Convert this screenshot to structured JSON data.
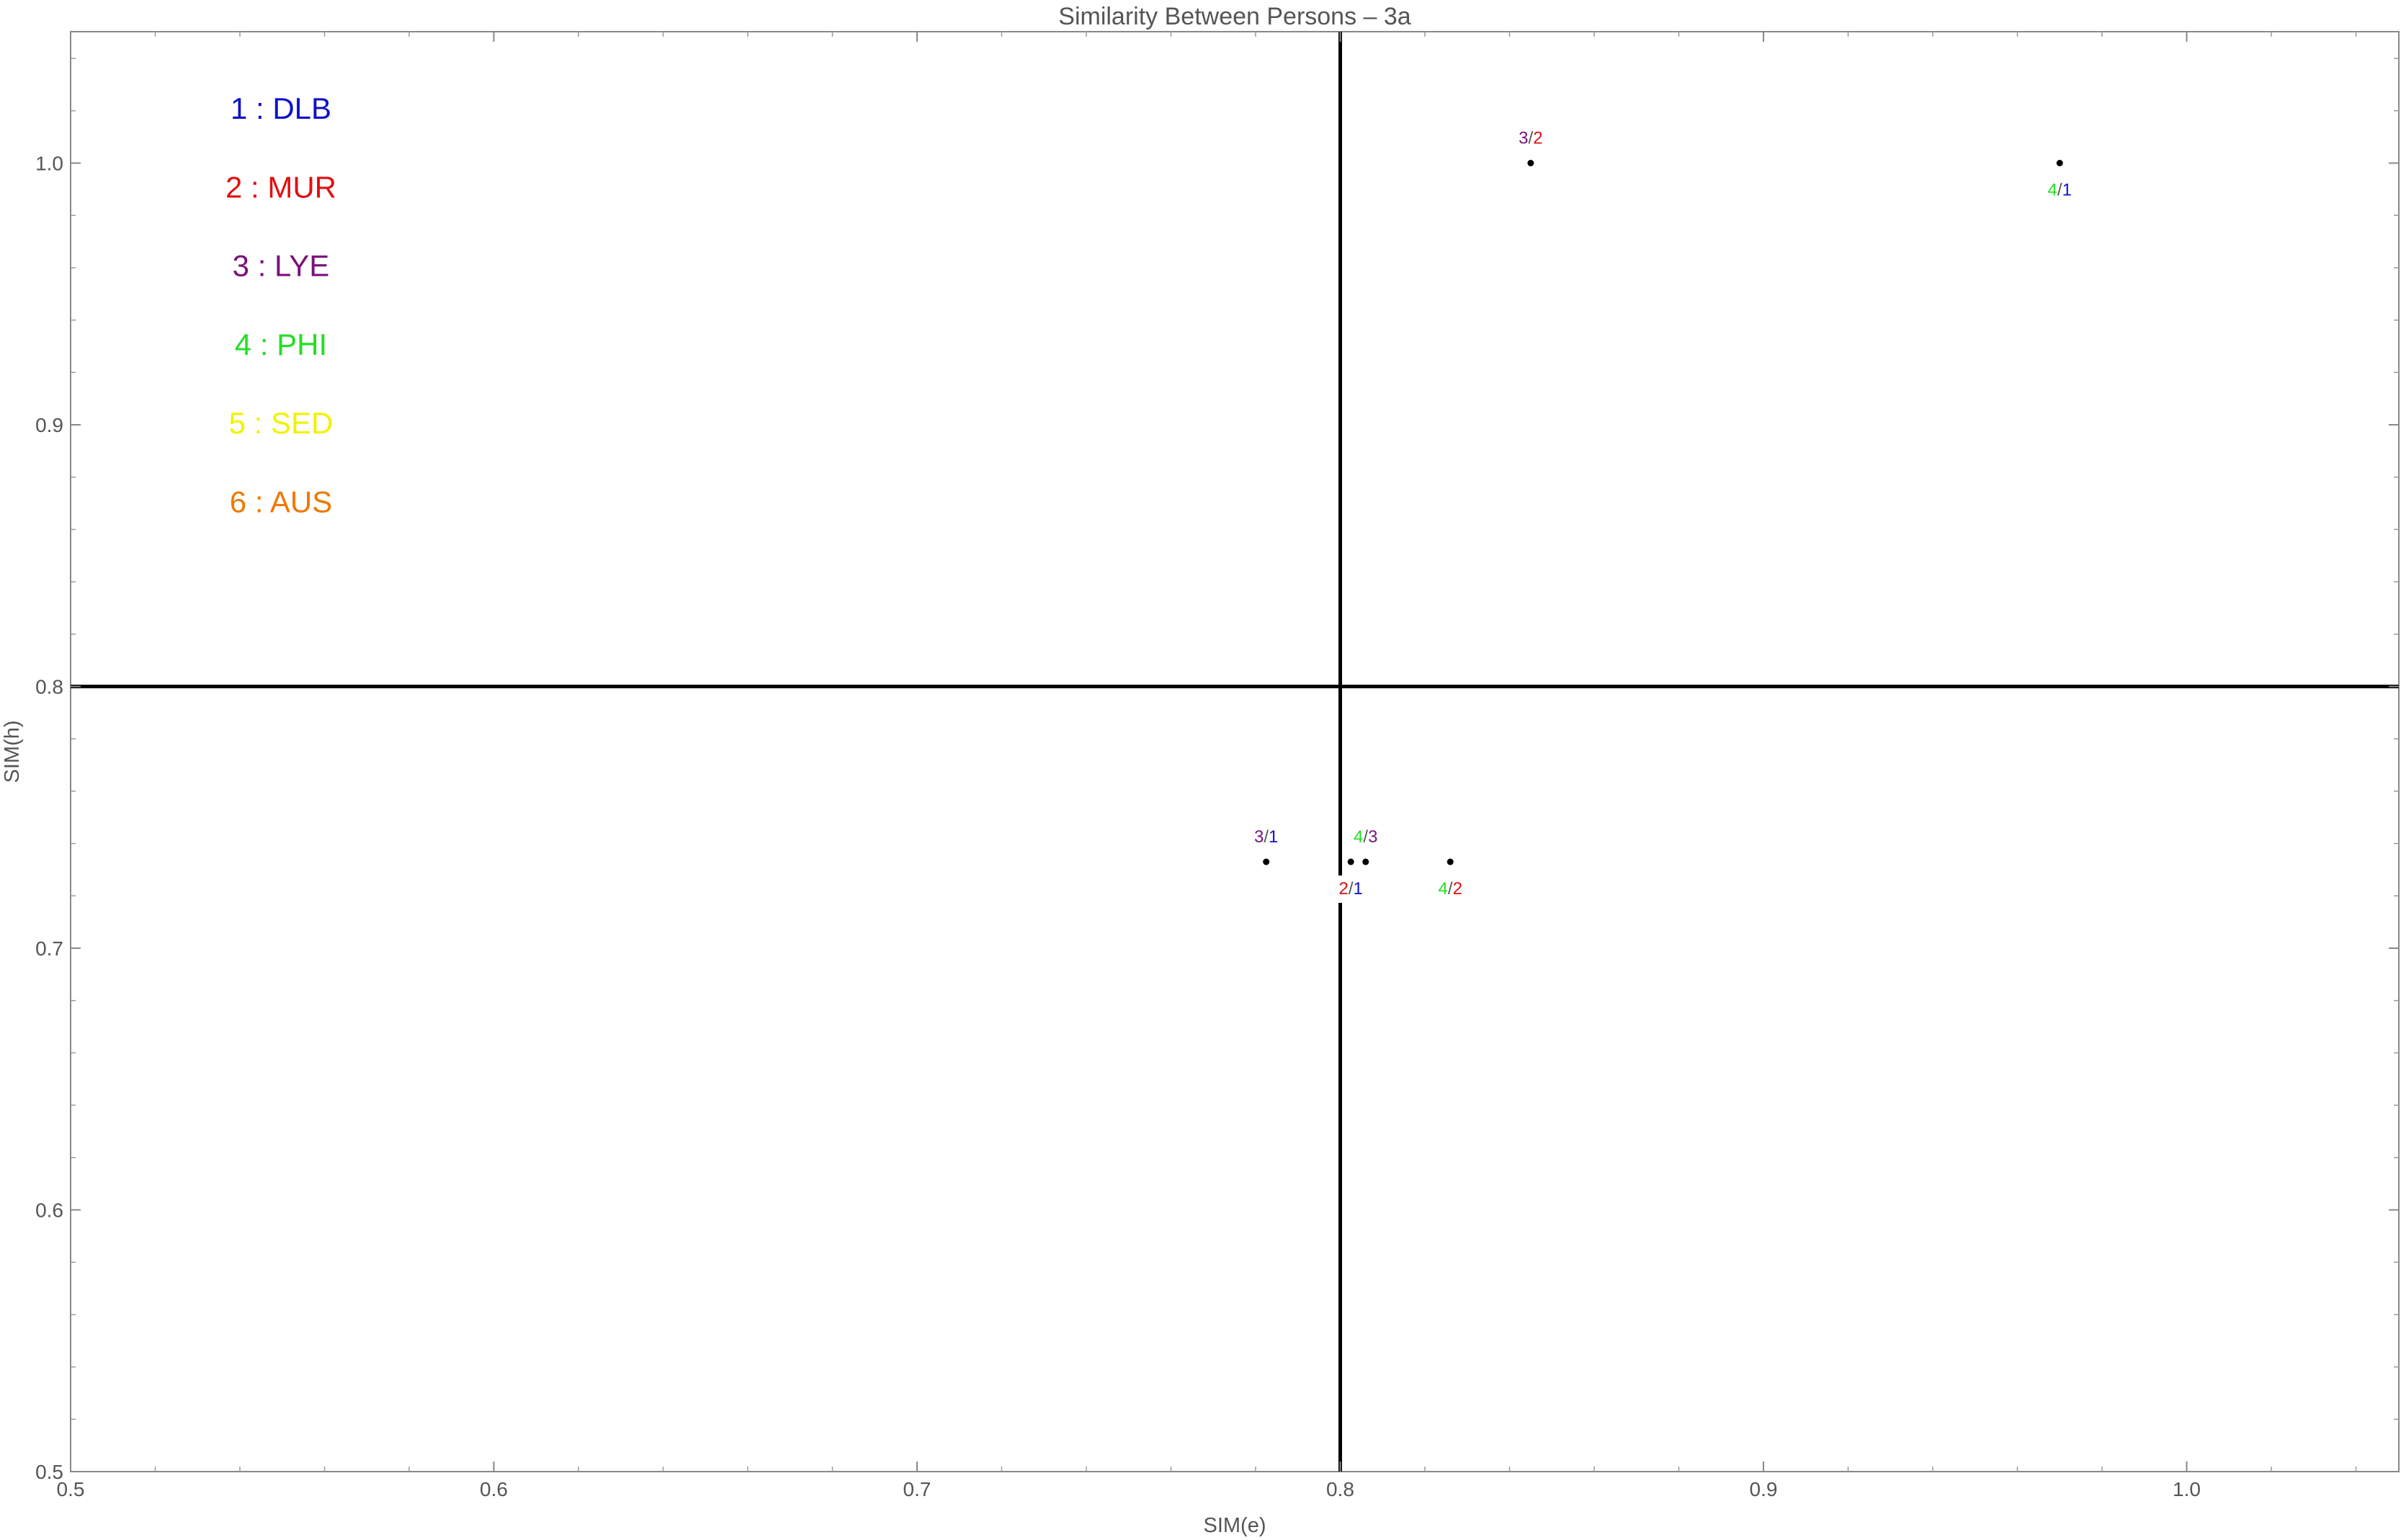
{
  "chart_data": {
    "type": "scatter",
    "title": "Similarity Between Persons – 3a",
    "xlabel": "SIM(e)",
    "ylabel": "SIM(h)",
    "xlim": [
      0.5,
      1.05
    ],
    "ylim": [
      0.5,
      1.05
    ],
    "xticks": [
      0.5,
      0.6,
      0.7,
      0.8,
      0.9,
      1.0
    ],
    "yticks": [
      0.5,
      0.6,
      0.7,
      0.8,
      0.9,
      1.0
    ],
    "xtick_labels": [
      "0.5",
      "0.6",
      "0.7",
      "0.8",
      "0.9",
      "1.0"
    ],
    "ytick_labels": [
      "0.5",
      "0.6",
      "0.7",
      "0.8",
      "0.9",
      "1.0"
    ],
    "reference_lines": {
      "x": 0.8,
      "y": 0.8
    },
    "grid": false,
    "legend_position": "top-left",
    "persons": [
      {
        "id": "1",
        "name": "DLB",
        "label": "1 : DLB",
        "color": "#1010c8"
      },
      {
        "id": "2",
        "name": "MUR",
        "label": "2 : MUR",
        "color": "#e01010"
      },
      {
        "id": "3",
        "name": "LYE",
        "label": "3 : LYE",
        "color": "#7a117a"
      },
      {
        "id": "4",
        "name": "PHI",
        "label": "4 : PHI",
        "color": "#22e022"
      },
      {
        "id": "5",
        "name": "SED",
        "label": "5 : SED",
        "color": "#f2f200"
      },
      {
        "id": "6",
        "name": "AUS",
        "label": "6 : AUS",
        "color": "#f07800"
      }
    ],
    "points": [
      {
        "pair": [
          "3",
          "2"
        ],
        "x": 0.845,
        "y": 1.0,
        "label_pos": "above"
      },
      {
        "pair": [
          "4",
          "1"
        ],
        "x": 0.97,
        "y": 1.0,
        "label_pos": "below"
      },
      {
        "pair": [
          "3",
          "1"
        ],
        "x": 0.7825,
        "y": 0.733,
        "label_pos": "above"
      },
      {
        "pair": [
          "2",
          "1"
        ],
        "x": 0.8025,
        "y": 0.733,
        "label_pos": "below"
      },
      {
        "pair": [
          "4",
          "3"
        ],
        "x": 0.806,
        "y": 0.733,
        "label_pos": "above"
      },
      {
        "pair": [
          "4",
          "2"
        ],
        "x": 0.826,
        "y": 0.733,
        "label_pos": "below"
      }
    ]
  }
}
